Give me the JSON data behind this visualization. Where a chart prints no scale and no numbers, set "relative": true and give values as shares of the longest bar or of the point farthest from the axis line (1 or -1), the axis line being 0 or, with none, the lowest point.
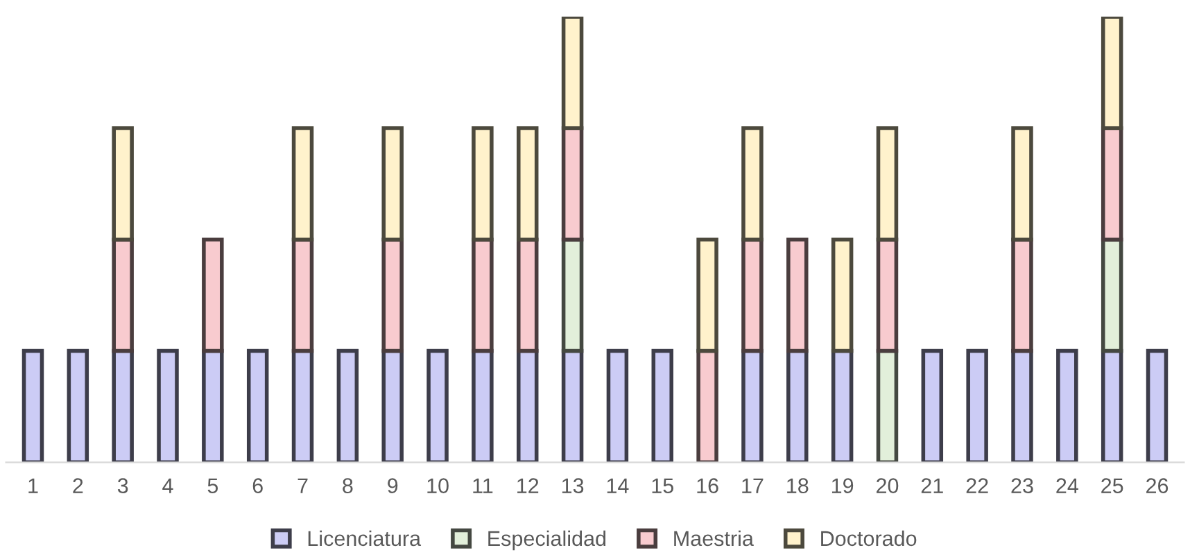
{
  "chart_data": {
    "type": "bar",
    "stacked": true,
    "relative": true,
    "legend": "bottom",
    "grid": false,
    "categories": [
      "1",
      "2",
      "3",
      "4",
      "5",
      "6",
      "7",
      "8",
      "9",
      "10",
      "11",
      "12",
      "13",
      "14",
      "15",
      "16",
      "17",
      "18",
      "19",
      "20",
      "21",
      "22",
      "23",
      "24",
      "25",
      "26"
    ],
    "series": [
      {
        "name": "Licenciatura",
        "color": "#ccccf5",
        "values": [
          0.25,
          0.25,
          0.25,
          0.25,
          0.25,
          0.25,
          0.25,
          0.25,
          0.25,
          0.25,
          0.25,
          0.25,
          0.25,
          0.25,
          0.25,
          0,
          0.25,
          0.25,
          0.25,
          0,
          0.25,
          0.25,
          0.25,
          0.25,
          0.25,
          0.25
        ]
      },
      {
        "name": "Especialidad",
        "color": "#e2efda",
        "values": [
          0,
          0,
          0,
          0,
          0,
          0,
          0,
          0,
          0,
          0,
          0,
          0,
          0.25,
          0,
          0,
          0,
          0,
          0,
          0,
          0.25,
          0,
          0,
          0,
          0,
          0.25,
          0
        ]
      },
      {
        "name": "Maestria",
        "color": "#f8cbcf",
        "values": [
          0,
          0,
          0.25,
          0,
          0.25,
          0,
          0.25,
          0,
          0.25,
          0,
          0.25,
          0.25,
          0.25,
          0,
          0,
          0.25,
          0.25,
          0.25,
          0,
          0.25,
          0,
          0,
          0.25,
          0,
          0.25,
          0
        ]
      },
      {
        "name": "Doctorado",
        "color": "#fff2cc",
        "values": [
          0,
          0,
          0.25,
          0,
          0,
          0,
          0.25,
          0,
          0.25,
          0,
          0.25,
          0.25,
          0.25,
          0,
          0,
          0.25,
          0.25,
          0,
          0.25,
          0.25,
          0,
          0,
          0.25,
          0,
          0.25,
          0
        ]
      }
    ]
  }
}
